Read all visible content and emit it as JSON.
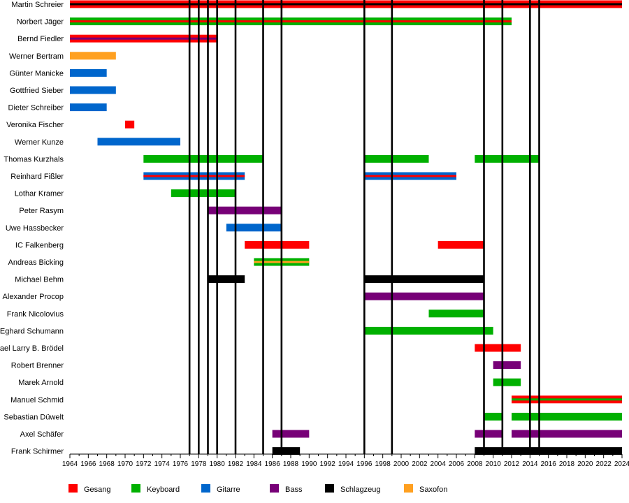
{
  "chart_data": {
    "type": "timeline",
    "x_range": [
      1964,
      2024
    ],
    "x_ticks": [
      1964,
      1966,
      1968,
      1970,
      1972,
      1974,
      1976,
      1978,
      1980,
      1982,
      1984,
      1986,
      1988,
      1990,
      1992,
      1994,
      1996,
      1998,
      2000,
      2002,
      2004,
      2006,
      2008,
      2010,
      2012,
      2014,
      2016,
      2018,
      2020,
      2022,
      2024
    ],
    "roles": [
      {
        "key": "gesang",
        "label": "Gesang",
        "color": "#ff0000"
      },
      {
        "key": "keyboard",
        "label": "Keyboard",
        "color": "#00b000"
      },
      {
        "key": "gitarre",
        "label": "Gitarre",
        "color": "#0066cc"
      },
      {
        "key": "bass",
        "label": "Bass",
        "color": "#770077"
      },
      {
        "key": "schlagzeug",
        "label": "Schlagzeug",
        "color": "#000000"
      },
      {
        "key": "saxofon",
        "label": "Saxofon",
        "color": "#ffa020"
      }
    ],
    "reference_years": [
      1977,
      1978,
      1979,
      1980,
      1982,
      1985,
      1987,
      1996,
      1999,
      2009,
      2011,
      2014,
      2015
    ],
    "members": [
      {
        "name": "Martin Schreier",
        "bars": [
          {
            "start": 1964,
            "end": 2024,
            "roles": [
              "gesang",
              "schlagzeug"
            ]
          }
        ]
      },
      {
        "name": "Norbert Jäger",
        "bars": [
          {
            "start": 1964,
            "end": 2012,
            "roles": [
              "keyboard",
              "gesang"
            ]
          }
        ]
      },
      {
        "name": "Bernd Fiedler",
        "bars": [
          {
            "start": 1964,
            "end": 1980,
            "roles": [
              "gesang",
              "bass"
            ]
          }
        ]
      },
      {
        "name": "Werner Bertram",
        "bars": [
          {
            "start": 1964,
            "end": 1969,
            "roles": [
              "saxofon"
            ]
          }
        ]
      },
      {
        "name": "Günter Manicke",
        "bars": [
          {
            "start": 1964,
            "end": 1968,
            "roles": [
              "gitarre"
            ]
          }
        ]
      },
      {
        "name": "Gottfried Sieber",
        "bars": [
          {
            "start": 1964,
            "end": 1969,
            "roles": [
              "gitarre"
            ]
          }
        ]
      },
      {
        "name": "Dieter Schreiber",
        "bars": [
          {
            "start": 1964,
            "end": 1968,
            "roles": [
              "gitarre"
            ]
          }
        ]
      },
      {
        "name": "Veronika Fischer",
        "bars": [
          {
            "start": 1970,
            "end": 1971,
            "roles": [
              "gesang"
            ]
          }
        ]
      },
      {
        "name": "Werner Kunze",
        "bars": [
          {
            "start": 1967,
            "end": 1976,
            "roles": [
              "gitarre"
            ]
          }
        ]
      },
      {
        "name": "Thomas Kurzhals",
        "bars": [
          {
            "start": 1972,
            "end": 1985,
            "roles": [
              "keyboard"
            ]
          },
          {
            "start": 1996,
            "end": 2003,
            "roles": [
              "keyboard"
            ]
          },
          {
            "start": 2008,
            "end": 2015,
            "roles": [
              "keyboard"
            ]
          }
        ]
      },
      {
        "name": "Reinhard Fißler",
        "bars": [
          {
            "start": 1972,
            "end": 1983,
            "roles": [
              "gitarre",
              "gesang"
            ]
          },
          {
            "start": 1996,
            "end": 2006,
            "roles": [
              "gitarre",
              "gesang"
            ]
          }
        ]
      },
      {
        "name": "Lothar Kramer",
        "bars": [
          {
            "start": 1975,
            "end": 1982,
            "roles": [
              "keyboard"
            ]
          }
        ]
      },
      {
        "name": "Peter Rasym",
        "bars": [
          {
            "start": 1979,
            "end": 1987,
            "roles": [
              "bass"
            ]
          }
        ]
      },
      {
        "name": "Uwe Hassbecker",
        "bars": [
          {
            "start": 1981,
            "end": 1987,
            "roles": [
              "gitarre"
            ]
          }
        ]
      },
      {
        "name": "IC Falkenberg",
        "bars": [
          {
            "start": 1983,
            "end": 1990,
            "roles": [
              "gesang"
            ]
          },
          {
            "start": 2004,
            "end": 2009,
            "roles": [
              "gesang"
            ]
          }
        ]
      },
      {
        "name": "Andreas Bicking",
        "bars": [
          {
            "start": 1984,
            "end": 1990,
            "roles": [
              "keyboard",
              "saxofon"
            ]
          }
        ]
      },
      {
        "name": "Michael Behm",
        "bars": [
          {
            "start": 1979,
            "end": 1983,
            "roles": [
              "schlagzeug"
            ]
          },
          {
            "start": 1996,
            "end": 2009,
            "roles": [
              "schlagzeug"
            ]
          }
        ]
      },
      {
        "name": "Alexander Procop",
        "bars": [
          {
            "start": 1996,
            "end": 2009,
            "roles": [
              "bass"
            ]
          }
        ]
      },
      {
        "name": "Frank Nicolovius",
        "bars": [
          {
            "start": 2003,
            "end": 2009,
            "roles": [
              "keyboard"
            ]
          }
        ]
      },
      {
        "name": "Eghard Schumann",
        "bars": [
          {
            "start": 1996,
            "end": 2010,
            "roles": [
              "keyboard"
            ]
          }
        ]
      },
      {
        "name": "Michael Larry B. Brödel",
        "bars": [
          {
            "start": 2008,
            "end": 2013,
            "roles": [
              "gesang"
            ]
          }
        ]
      },
      {
        "name": "Robert Brenner",
        "bars": [
          {
            "start": 2010,
            "end": 2013,
            "roles": [
              "bass"
            ]
          }
        ]
      },
      {
        "name": "Marek Arnold",
        "bars": [
          {
            "start": 2010,
            "end": 2013,
            "roles": [
              "keyboard"
            ]
          }
        ]
      },
      {
        "name": "Manuel Schmid",
        "bars": [
          {
            "start": 2012,
            "end": 2024,
            "roles": [
              "gesang",
              "keyboard"
            ]
          }
        ]
      },
      {
        "name": "Sebastian Düwelt",
        "bars": [
          {
            "start": 2009,
            "end": 2011,
            "roles": [
              "keyboard"
            ]
          },
          {
            "start": 2012,
            "end": 2024,
            "roles": [
              "keyboard"
            ]
          }
        ]
      },
      {
        "name": "Axel Schäfer",
        "bars": [
          {
            "start": 1986,
            "end": 1990,
            "roles": [
              "bass"
            ]
          },
          {
            "start": 2008,
            "end": 2011,
            "roles": [
              "bass"
            ]
          },
          {
            "start": 2012,
            "end": 2024,
            "roles": [
              "bass"
            ]
          }
        ]
      },
      {
        "name": "Frank Schirmer",
        "bars": [
          {
            "start": 1986,
            "end": 1989,
            "roles": [
              "schlagzeug"
            ]
          },
          {
            "start": 2008,
            "end": 2024,
            "roles": [
              "schlagzeug"
            ]
          }
        ]
      }
    ]
  }
}
